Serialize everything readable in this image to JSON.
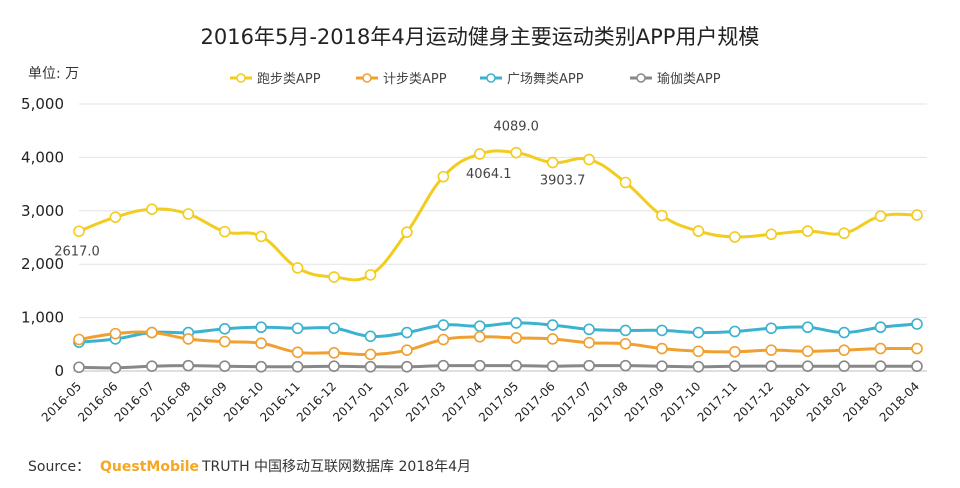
{
  "chart_data": {
    "type": "line",
    "title": "2016年5月-2018年4月运动健身主要运动类别APP用户规模",
    "unit_label": "单位: 万",
    "categories": [
      "2016-05",
      "2016-06",
      "2016-07",
      "2016-08",
      "2016-09",
      "2016-10",
      "2016-11",
      "2016-12",
      "2017-01",
      "2017-02",
      "2017-03",
      "2017-04",
      "2017-05",
      "2017-06",
      "2017-07",
      "2017-08",
      "2017-09",
      "2017-10",
      "2017-11",
      "2017-12",
      "2018-01",
      "2018-02",
      "2018-03",
      "2018-04"
    ],
    "yticks": [
      "0",
      "1,000",
      "2,000",
      "3,000",
      "4,000",
      "5,000"
    ],
    "ytick_values": [
      0,
      1000,
      2000,
      3000,
      4000,
      5000
    ],
    "ylim": [
      0,
      5000
    ],
    "legend_position": "top",
    "series": [
      {
        "name": "跑步类APP",
        "color": "#f2cc1f",
        "values": [
          2617,
          2880,
          3030,
          2940,
          2610,
          2520,
          1930,
          1760,
          1800,
          2600,
          3640,
          4064.1,
          4089,
          3903.7,
          3960,
          3530,
          2910,
          2620,
          2510,
          2560,
          2620,
          2580,
          2900,
          2920
        ]
      },
      {
        "name": "计步类APP",
        "color": "#f0a030",
        "values": [
          590,
          700,
          720,
          600,
          550,
          520,
          350,
          340,
          310,
          390,
          590,
          640,
          620,
          600,
          530,
          510,
          420,
          370,
          360,
          390,
          370,
          390,
          420,
          420
        ]
      },
      {
        "name": "广场舞类APP",
        "color": "#3bb2cf",
        "values": [
          540,
          600,
          720,
          720,
          790,
          820,
          800,
          800,
          650,
          720,
          860,
          840,
          900,
          860,
          780,
          760,
          760,
          720,
          740,
          800,
          820,
          720,
          820,
          880
        ]
      },
      {
        "name": "瑜伽类APP",
        "color": "#888888",
        "values": [
          70,
          60,
          90,
          100,
          90,
          80,
          80,
          90,
          80,
          80,
          100,
          100,
          100,
          90,
          100,
          100,
          90,
          80,
          90,
          90,
          90,
          90,
          90,
          90
        ]
      }
    ],
    "annotations": [
      {
        "text": "2617.0",
        "series": 0,
        "index": 0
      },
      {
        "text": "4064.1",
        "series": 0,
        "index": 11
      },
      {
        "text": "4089.0",
        "series": 0,
        "index": 12
      },
      {
        "text": "3903.7",
        "series": 0,
        "index": 13
      }
    ]
  },
  "source": {
    "prefix": "Source：",
    "brand": "QuestMobile",
    "suffix": "TRUTH 中国移动互联网数据库 2018年4月"
  }
}
